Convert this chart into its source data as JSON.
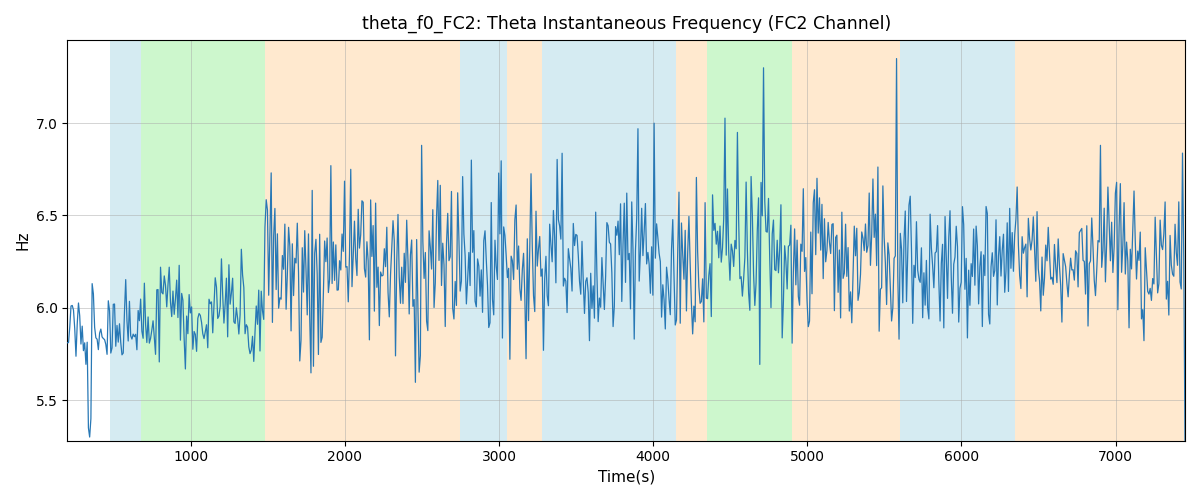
{
  "title": "theta_f0_FC2: Theta Instantaneous Frequency (FC2 Channel)",
  "xlabel": "Time(s)",
  "ylabel": "Hz",
  "xlim": [
    200,
    7450
  ],
  "ylim": [
    5.28,
    7.45
  ],
  "yticks": [
    5.5,
    6.0,
    6.5,
    7.0
  ],
  "xticks": [
    1000,
    2000,
    3000,
    4000,
    5000,
    6000,
    7000
  ],
  "line_color": "#2878b5",
  "line_width": 0.9,
  "regions": [
    {
      "xmin": 480,
      "xmax": 680,
      "color": "#add8e6",
      "alpha": 0.5
    },
    {
      "xmin": 680,
      "xmax": 1480,
      "color": "#90ee90",
      "alpha": 0.45
    },
    {
      "xmin": 1480,
      "xmax": 2750,
      "color": "#ffd8a8",
      "alpha": 0.55
    },
    {
      "xmin": 2750,
      "xmax": 3050,
      "color": "#add8e6",
      "alpha": 0.5
    },
    {
      "xmin": 3050,
      "xmax": 3280,
      "color": "#ffd8a8",
      "alpha": 0.55
    },
    {
      "xmin": 3280,
      "xmax": 4150,
      "color": "#add8e6",
      "alpha": 0.5
    },
    {
      "xmin": 4150,
      "xmax": 4350,
      "color": "#ffd8a8",
      "alpha": 0.55
    },
    {
      "xmin": 4350,
      "xmax": 4900,
      "color": "#90ee90",
      "alpha": 0.45
    },
    {
      "xmin": 4900,
      "xmax": 5600,
      "color": "#ffd8a8",
      "alpha": 0.55
    },
    {
      "xmin": 5600,
      "xmax": 6350,
      "color": "#add8e6",
      "alpha": 0.5
    },
    {
      "xmin": 6350,
      "xmax": 7450,
      "color": "#ffd8a8",
      "alpha": 0.55
    }
  ],
  "figsize": [
    12.0,
    5.0
  ],
  "dpi": 100
}
